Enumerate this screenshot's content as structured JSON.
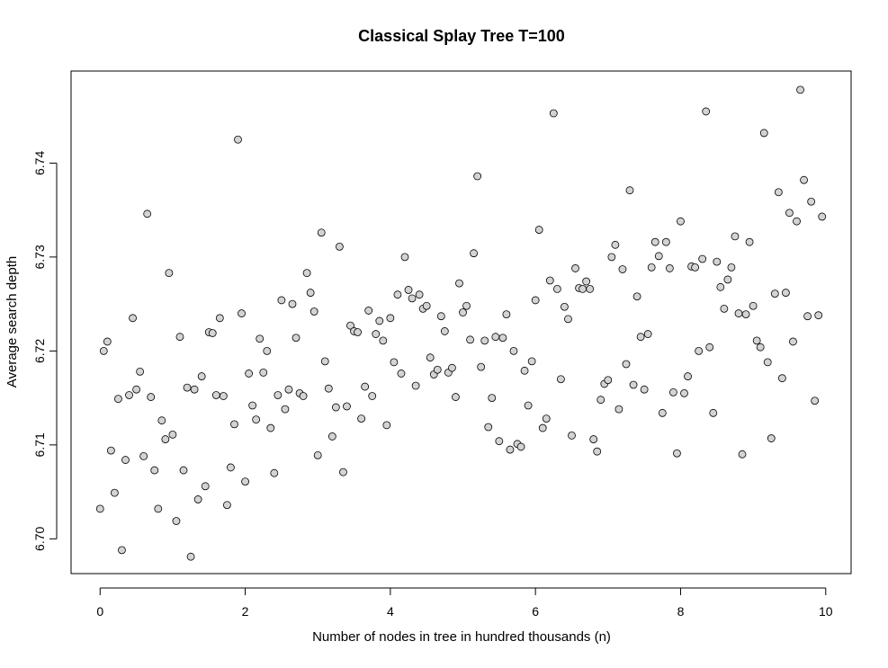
{
  "chart_data": {
    "type": "scatter",
    "title": "Classical Splay Tree T=100",
    "xlabel": "Number of nodes in tree in hundred thousands (n)",
    "ylabel": "Average search depth",
    "xlim": [
      -0.4,
      10.35
    ],
    "ylim": [
      6.6963,
      6.7498
    ],
    "xticks": [
      0,
      2,
      4,
      6,
      8,
      10
    ],
    "xtick_labels": [
      "0",
      "2",
      "4",
      "6",
      "8",
      "10"
    ],
    "yticks": [
      6.7,
      6.71,
      6.72,
      6.73,
      6.74
    ],
    "ytick_labels": [
      "6.70",
      "6.71",
      "6.72",
      "6.73",
      "6.74"
    ],
    "grid": false,
    "marker_color": "#d3d3d3",
    "marker_edge_color": "#000000",
    "points": [
      [
        0.0,
        6.7032
      ],
      [
        0.05,
        6.72
      ],
      [
        0.1,
        6.721
      ],
      [
        0.15,
        6.7094
      ],
      [
        0.2,
        6.7049
      ],
      [
        0.25,
        6.7149
      ],
      [
        0.3,
        6.6988
      ],
      [
        0.35,
        6.7084
      ],
      [
        0.4,
        6.7153
      ],
      [
        0.45,
        6.7235
      ],
      [
        0.5,
        6.7159
      ],
      [
        0.55,
        6.7178
      ],
      [
        0.6,
        6.7088
      ],
      [
        0.65,
        6.7346
      ],
      [
        0.7,
        6.7151
      ],
      [
        0.75,
        6.7073
      ],
      [
        0.8,
        6.7032
      ],
      [
        0.85,
        6.7126
      ],
      [
        0.9,
        6.7106
      ],
      [
        0.95,
        6.7283
      ],
      [
        1.0,
        6.7111
      ],
      [
        1.05,
        6.7019
      ],
      [
        1.1,
        6.7215
      ],
      [
        1.15,
        6.7073
      ],
      [
        1.2,
        6.7161
      ],
      [
        1.25,
        6.6981
      ],
      [
        1.3,
        6.7159
      ],
      [
        1.35,
        6.7042
      ],
      [
        1.4,
        6.7173
      ],
      [
        1.45,
        6.7056
      ],
      [
        1.5,
        6.722
      ],
      [
        1.55,
        6.7219
      ],
      [
        1.6,
        6.7153
      ],
      [
        1.65,
        6.7235
      ],
      [
        1.7,
        6.7152
      ],
      [
        1.75,
        6.7036
      ],
      [
        1.8,
        6.7076
      ],
      [
        1.85,
        6.7122
      ],
      [
        1.9,
        6.7425
      ],
      [
        1.95,
        6.724
      ],
      [
        2.0,
        6.7061
      ],
      [
        2.05,
        6.7176
      ],
      [
        2.1,
        6.7142
      ],
      [
        2.15,
        6.7127
      ],
      [
        2.2,
        6.7213
      ],
      [
        2.25,
        6.7177
      ],
      [
        2.3,
        6.72
      ],
      [
        2.35,
        6.7118
      ],
      [
        2.4,
        6.707
      ],
      [
        2.45,
        6.7153
      ],
      [
        2.5,
        6.7254
      ],
      [
        2.55,
        6.7138
      ],
      [
        2.6,
        6.7159
      ],
      [
        2.65,
        6.725
      ],
      [
        2.7,
        6.7214
      ],
      [
        2.75,
        6.7155
      ],
      [
        2.8,
        6.7152
      ],
      [
        2.85,
        6.7283
      ],
      [
        2.9,
        6.7262
      ],
      [
        2.95,
        6.7242
      ],
      [
        3.0,
        6.7089
      ],
      [
        3.05,
        6.7326
      ],
      [
        3.1,
        6.7189
      ],
      [
        3.15,
        6.716
      ],
      [
        3.2,
        6.7109
      ],
      [
        3.25,
        6.714
      ],
      [
        3.3,
        6.7311
      ],
      [
        3.35,
        6.7071
      ],
      [
        3.4,
        6.7141
      ],
      [
        3.45,
        6.7227
      ],
      [
        3.5,
        6.7221
      ],
      [
        3.55,
        6.722
      ],
      [
        3.6,
        6.7128
      ],
      [
        3.65,
        6.7162
      ],
      [
        3.7,
        6.7243
      ],
      [
        3.75,
        6.7152
      ],
      [
        3.8,
        6.7218
      ],
      [
        3.85,
        6.7232
      ],
      [
        3.9,
        6.7211
      ],
      [
        3.95,
        6.7121
      ],
      [
        4.0,
        6.7235
      ],
      [
        4.05,
        6.7188
      ],
      [
        4.1,
        6.726
      ],
      [
        4.15,
        6.7176
      ],
      [
        4.2,
        6.73
      ],
      [
        4.25,
        6.7265
      ],
      [
        4.3,
        6.7256
      ],
      [
        4.35,
        6.7163
      ],
      [
        4.4,
        6.726
      ],
      [
        4.45,
        6.7245
      ],
      [
        4.5,
        6.7248
      ],
      [
        4.55,
        6.7193
      ],
      [
        4.6,
        6.7175
      ],
      [
        4.65,
        6.718
      ],
      [
        4.7,
        6.7237
      ],
      [
        4.75,
        6.7221
      ],
      [
        4.8,
        6.7177
      ],
      [
        4.85,
        6.7182
      ],
      [
        4.9,
        6.7151
      ],
      [
        4.95,
        6.7272
      ],
      [
        5.0,
        6.7241
      ],
      [
        5.05,
        6.7248
      ],
      [
        5.1,
        6.7212
      ],
      [
        5.15,
        6.7304
      ],
      [
        5.2,
        6.7386
      ],
      [
        5.25,
        6.7183
      ],
      [
        5.3,
        6.7211
      ],
      [
        5.35,
        6.7119
      ],
      [
        5.4,
        6.715
      ],
      [
        5.45,
        6.7215
      ],
      [
        5.5,
        6.7104
      ],
      [
        5.55,
        6.7214
      ],
      [
        5.6,
        6.7239
      ],
      [
        5.65,
        6.7095
      ],
      [
        5.7,
        6.72
      ],
      [
        5.75,
        6.7101
      ],
      [
        5.8,
        6.7098
      ],
      [
        5.85,
        6.7179
      ],
      [
        5.9,
        6.7142
      ],
      [
        5.95,
        6.7189
      ],
      [
        6.0,
        6.7254
      ],
      [
        6.05,
        6.7329
      ],
      [
        6.1,
        6.7118
      ],
      [
        6.15,
        6.7128
      ],
      [
        6.2,
        6.7275
      ],
      [
        6.25,
        6.7453
      ],
      [
        6.3,
        6.7266
      ],
      [
        6.35,
        6.717
      ],
      [
        6.4,
        6.7247
      ],
      [
        6.45,
        6.7234
      ],
      [
        6.5,
        6.711
      ],
      [
        6.55,
        6.7288
      ],
      [
        6.6,
        6.7267
      ],
      [
        6.65,
        6.7266
      ],
      [
        6.7,
        6.7274
      ],
      [
        6.75,
        6.7266
      ],
      [
        6.8,
        6.7106
      ],
      [
        6.85,
        6.7093
      ],
      [
        6.9,
        6.7148
      ],
      [
        6.95,
        6.7165
      ],
      [
        7.0,
        6.7169
      ],
      [
        7.05,
        6.73
      ],
      [
        7.1,
        6.7313
      ],
      [
        7.15,
        6.7138
      ],
      [
        7.2,
        6.7287
      ],
      [
        7.25,
        6.7186
      ],
      [
        7.3,
        6.7371
      ],
      [
        7.35,
        6.7164
      ],
      [
        7.4,
        6.7258
      ],
      [
        7.45,
        6.7215
      ],
      [
        7.5,
        6.7159
      ],
      [
        7.55,
        6.7218
      ],
      [
        7.6,
        6.7289
      ],
      [
        7.65,
        6.7316
      ],
      [
        7.7,
        6.7301
      ],
      [
        7.75,
        6.7134
      ],
      [
        7.8,
        6.7316
      ],
      [
        7.85,
        6.7288
      ],
      [
        7.9,
        6.7156
      ],
      [
        7.95,
        6.7091
      ],
      [
        8.0,
        6.7338
      ],
      [
        8.05,
        6.7155
      ],
      [
        8.1,
        6.7173
      ],
      [
        8.15,
        6.729
      ],
      [
        8.2,
        6.7289
      ],
      [
        8.25,
        6.72
      ],
      [
        8.3,
        6.7298
      ],
      [
        8.35,
        6.7455
      ],
      [
        8.4,
        6.7204
      ],
      [
        8.45,
        6.7134
      ],
      [
        8.5,
        6.7295
      ],
      [
        8.55,
        6.7268
      ],
      [
        8.6,
        6.7245
      ],
      [
        8.65,
        6.7276
      ],
      [
        8.7,
        6.7289
      ],
      [
        8.75,
        6.7322
      ],
      [
        8.8,
        6.724
      ],
      [
        8.85,
        6.709
      ],
      [
        8.9,
        6.7239
      ],
      [
        8.95,
        6.7316
      ],
      [
        9.0,
        6.7248
      ],
      [
        9.05,
        6.7211
      ],
      [
        9.1,
        6.7204
      ],
      [
        9.15,
        6.7432
      ],
      [
        9.2,
        6.7188
      ],
      [
        9.25,
        6.7107
      ],
      [
        9.3,
        6.7261
      ],
      [
        9.35,
        6.7369
      ],
      [
        9.4,
        6.7171
      ],
      [
        9.45,
        6.7262
      ],
      [
        9.5,
        6.7347
      ],
      [
        9.55,
        6.721
      ],
      [
        9.6,
        6.7338
      ],
      [
        9.65,
        6.7478
      ],
      [
        9.7,
        6.7382
      ],
      [
        9.75,
        6.7237
      ],
      [
        9.8,
        6.7359
      ],
      [
        9.85,
        6.7147
      ],
      [
        9.9,
        6.7238
      ],
      [
        9.95,
        6.7343
      ]
    ]
  }
}
